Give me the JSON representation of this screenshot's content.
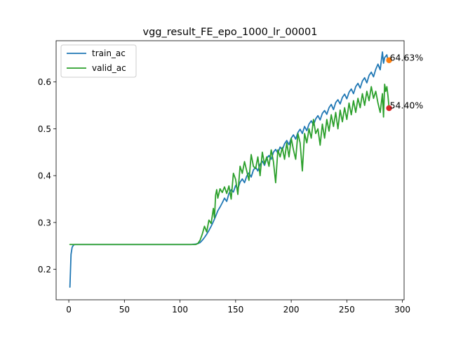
{
  "chart_data": {
    "type": "line",
    "title": "vgg_result_FE_epo_1000_lr_00001",
    "xlabel": "",
    "ylabel": "",
    "xlim": [
      -11.4,
      301.5
    ],
    "ylim": [
      0.135,
      0.688
    ],
    "xticks": [
      0,
      50,
      100,
      150,
      200,
      250,
      300
    ],
    "yticks": [
      0.2,
      0.3,
      0.4,
      0.5,
      0.6
    ],
    "legend_position": "upper-left",
    "grid": false,
    "series": [
      {
        "name": "train_ac",
        "color": "#1f77b4",
        "points": [
          [
            1,
            0.162
          ],
          [
            2,
            0.232
          ],
          [
            3,
            0.247
          ],
          [
            4,
            0.251
          ],
          [
            5,
            0.253
          ],
          [
            8,
            0.253
          ],
          [
            20,
            0.253
          ],
          [
            40,
            0.253
          ],
          [
            60,
            0.253
          ],
          [
            80,
            0.253
          ],
          [
            100,
            0.253
          ],
          [
            110,
            0.253
          ],
          [
            114,
            0.254
          ],
          [
            116,
            0.255
          ],
          [
            118,
            0.257
          ],
          [
            120,
            0.262
          ],
          [
            122,
            0.268
          ],
          [
            124,
            0.275
          ],
          [
            126,
            0.283
          ],
          [
            128,
            0.292
          ],
          [
            130,
            0.302
          ],
          [
            132,
            0.313
          ],
          [
            134,
            0.325
          ],
          [
            136,
            0.333
          ],
          [
            138,
            0.342
          ],
          [
            140,
            0.352
          ],
          [
            142,
            0.345
          ],
          [
            144,
            0.362
          ],
          [
            146,
            0.37
          ],
          [
            148,
            0.365
          ],
          [
            150,
            0.379
          ],
          [
            152,
            0.372
          ],
          [
            154,
            0.386
          ],
          [
            156,
            0.393
          ],
          [
            158,
            0.385
          ],
          [
            160,
            0.399
          ],
          [
            162,
            0.406
          ],
          [
            164,
            0.397
          ],
          [
            166,
            0.412
          ],
          [
            168,
            0.418
          ],
          [
            170,
            0.41
          ],
          [
            172,
            0.424
          ],
          [
            174,
            0.431
          ],
          [
            176,
            0.422
          ],
          [
            178,
            0.437
          ],
          [
            180,
            0.443
          ],
          [
            182,
            0.435
          ],
          [
            184,
            0.45
          ],
          [
            186,
            0.456
          ],
          [
            188,
            0.448
          ],
          [
            190,
            0.461
          ],
          [
            192,
            0.455
          ],
          [
            194,
            0.468
          ],
          [
            196,
            0.475
          ],
          [
            198,
            0.466
          ],
          [
            200,
            0.48
          ],
          [
            202,
            0.487
          ],
          [
            204,
            0.478
          ],
          [
            206,
            0.492
          ],
          [
            208,
            0.499
          ],
          [
            210,
            0.49
          ],
          [
            212,
            0.505
          ],
          [
            214,
            0.496
          ],
          [
            216,
            0.51
          ],
          [
            218,
            0.517
          ],
          [
            220,
            0.508
          ],
          [
            222,
            0.521
          ],
          [
            224,
            0.528
          ],
          [
            226,
            0.519
          ],
          [
            228,
            0.533
          ],
          [
            230,
            0.539
          ],
          [
            232,
            0.531
          ],
          [
            234,
            0.545
          ],
          [
            236,
            0.552
          ],
          [
            238,
            0.541
          ],
          [
            240,
            0.556
          ],
          [
            242,
            0.562
          ],
          [
            244,
            0.553
          ],
          [
            246,
            0.567
          ],
          [
            248,
            0.574
          ],
          [
            250,
            0.564
          ],
          [
            252,
            0.578
          ],
          [
            254,
            0.585
          ],
          [
            256,
            0.575
          ],
          [
            258,
            0.59
          ],
          [
            260,
            0.597
          ],
          [
            262,
            0.587
          ],
          [
            264,
            0.602
          ],
          [
            266,
            0.609
          ],
          [
            268,
            0.598
          ],
          [
            270,
            0.614
          ],
          [
            272,
            0.621
          ],
          [
            274,
            0.611
          ],
          [
            276,
            0.627
          ],
          [
            278,
            0.638
          ],
          [
            280,
            0.626
          ],
          [
            282,
            0.664
          ],
          [
            283,
            0.64
          ],
          [
            284,
            0.652
          ],
          [
            286,
            0.658
          ],
          [
            287,
            0.643
          ],
          [
            288,
            0.646
          ]
        ]
      },
      {
        "name": "valid_ac",
        "color": "#2ca02c",
        "points": [
          [
            1,
            0.253
          ],
          [
            20,
            0.253
          ],
          [
            40,
            0.253
          ],
          [
            60,
            0.253
          ],
          [
            80,
            0.253
          ],
          [
            100,
            0.253
          ],
          [
            110,
            0.253
          ],
          [
            114,
            0.253
          ],
          [
            116,
            0.255
          ],
          [
            118,
            0.262
          ],
          [
            120,
            0.275
          ],
          [
            122,
            0.292
          ],
          [
            124,
            0.28
          ],
          [
            126,
            0.305
          ],
          [
            128,
            0.298
          ],
          [
            130,
            0.33
          ],
          [
            131,
            0.31
          ],
          [
            132,
            0.358
          ],
          [
            133,
            0.37
          ],
          [
            134,
            0.352
          ],
          [
            136,
            0.372
          ],
          [
            138,
            0.364
          ],
          [
            140,
            0.376
          ],
          [
            142,
            0.362
          ],
          [
            144,
            0.378
          ],
          [
            146,
            0.35
          ],
          [
            148,
            0.405
          ],
          [
            150,
            0.392
          ],
          [
            152,
            0.36
          ],
          [
            154,
            0.42
          ],
          [
            156,
            0.405
          ],
          [
            158,
            0.43
          ],
          [
            160,
            0.41
          ],
          [
            162,
            0.39
          ],
          [
            164,
            0.445
          ],
          [
            166,
            0.42
          ],
          [
            168,
            0.415
          ],
          [
            170,
            0.44
          ],
          [
            172,
            0.4
          ],
          [
            174,
            0.45
          ],
          [
            176,
            0.425
          ],
          [
            178,
            0.44
          ],
          [
            180,
            0.42
          ],
          [
            182,
            0.455
          ],
          [
            184,
            0.43
          ],
          [
            186,
            0.385
          ],
          [
            188,
            0.455
          ],
          [
            190,
            0.44
          ],
          [
            192,
            0.46
          ],
          [
            194,
            0.435
          ],
          [
            196,
            0.47
          ],
          [
            198,
            0.44
          ],
          [
            200,
            0.48
          ],
          [
            202,
            0.455
          ],
          [
            204,
            0.435
          ],
          [
            206,
            0.49
          ],
          [
            208,
            0.47
          ],
          [
            210,
            0.41
          ],
          [
            212,
            0.49
          ],
          [
            214,
            0.47
          ],
          [
            216,
            0.5
          ],
          [
            218,
            0.48
          ],
          [
            220,
            0.52
          ],
          [
            222,
            0.49
          ],
          [
            224,
            0.5
          ],
          [
            226,
            0.465
          ],
          [
            228,
            0.51
          ],
          [
            230,
            0.48
          ],
          [
            232,
            0.52
          ],
          [
            234,
            0.495
          ],
          [
            236,
            0.53
          ],
          [
            238,
            0.505
          ],
          [
            240,
            0.535
          ],
          [
            242,
            0.5
          ],
          [
            244,
            0.54
          ],
          [
            246,
            0.515
          ],
          [
            248,
            0.545
          ],
          [
            250,
            0.52
          ],
          [
            252,
            0.555
          ],
          [
            254,
            0.53
          ],
          [
            256,
            0.56
          ],
          [
            258,
            0.535
          ],
          [
            260,
            0.565
          ],
          [
            262,
            0.545
          ],
          [
            264,
            0.575
          ],
          [
            266,
            0.55
          ],
          [
            268,
            0.58
          ],
          [
            270,
            0.56
          ],
          [
            272,
            0.59
          ],
          [
            274,
            0.565
          ],
          [
            276,
            0.58
          ],
          [
            278,
            0.555
          ],
          [
            280,
            0.535
          ],
          [
            282,
            0.575
          ],
          [
            283,
            0.525
          ],
          [
            284,
            0.595
          ],
          [
            285,
            0.58
          ],
          [
            286,
            0.59
          ],
          [
            287,
            0.57
          ],
          [
            288,
            0.544
          ]
        ]
      }
    ],
    "annotations": [
      {
        "x": 288,
        "y": 0.6463,
        "text": "64.63%",
        "marker_color": "#ff7f0e"
      },
      {
        "x": 288,
        "y": 0.544,
        "text": "54.40%",
        "marker_color": "#d62728"
      }
    ]
  }
}
